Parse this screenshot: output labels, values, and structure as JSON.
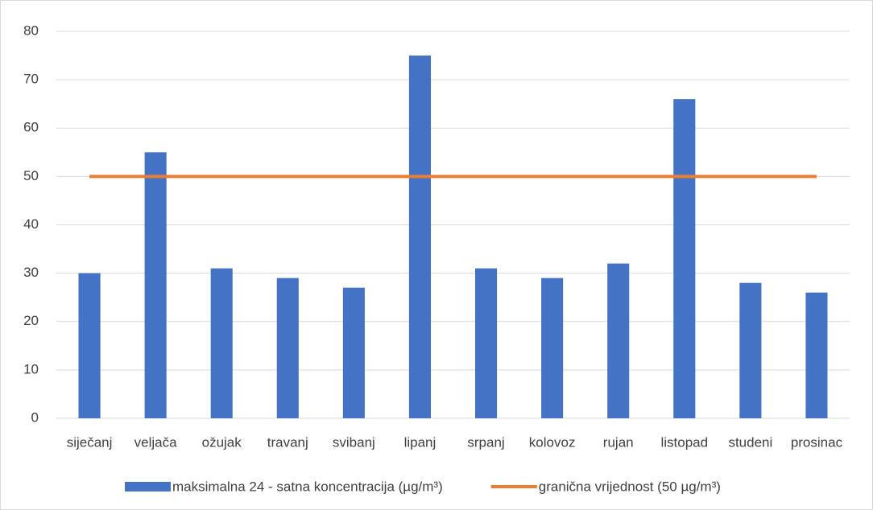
{
  "chart_data": {
    "type": "bar",
    "categories": [
      "siječanj",
      "veljača",
      "ožujak",
      "travanj",
      "svibanj",
      "lipanj",
      "srpanj",
      "kolovoz",
      "rujan",
      "listopad",
      "studeni",
      "prosinac"
    ],
    "series": [
      {
        "name": "maksimalna 24 - satna koncentracija (µg/m³)",
        "type": "bar",
        "color": "#4472c4",
        "values": [
          30,
          55,
          31,
          29,
          27,
          75,
          31,
          29,
          32,
          66,
          28,
          26
        ]
      },
      {
        "name": "granična vrijednost (50 µg/m³)",
        "type": "line",
        "color": "#ed7d31",
        "values": [
          50,
          50,
          50,
          50,
          50,
          50,
          50,
          50,
          50,
          50,
          50,
          50
        ]
      }
    ],
    "ylim": [
      0,
      80
    ],
    "yticks": [
      0,
      10,
      20,
      30,
      40,
      50,
      60,
      70,
      80
    ],
    "grid": true,
    "legend": "bottom"
  }
}
